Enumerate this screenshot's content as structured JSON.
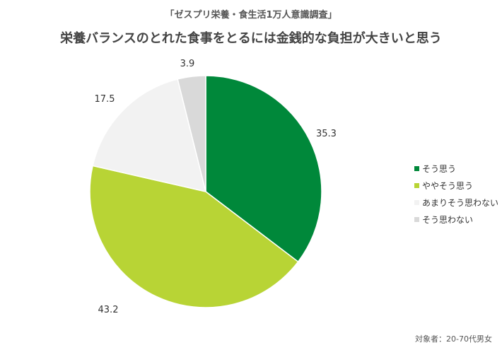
{
  "header": {
    "subtitle": "「ゼスプリ栄養・食生活1万人意識調査」",
    "title": "栄養バランスのとれた食事をとるには金銭的な負担が大きいと思う"
  },
  "footnote": "対象者：20-70代男女",
  "chart_data": {
    "type": "pie",
    "title": "栄養バランスのとれた食事をとるには金銭的な負担が大きいと思う",
    "categories": [
      "そう思う",
      "ややそう思う",
      "あまりそう思わない",
      "そう思わない"
    ],
    "values": [
      35.3,
      43.2,
      17.5,
      3.9
    ],
    "colors": [
      "#00883A",
      "#B8D435",
      "#F2F2F2",
      "#D9D9D9"
    ],
    "start": "12 o'clock",
    "direction": "clockwise",
    "legend_position": "right"
  }
}
